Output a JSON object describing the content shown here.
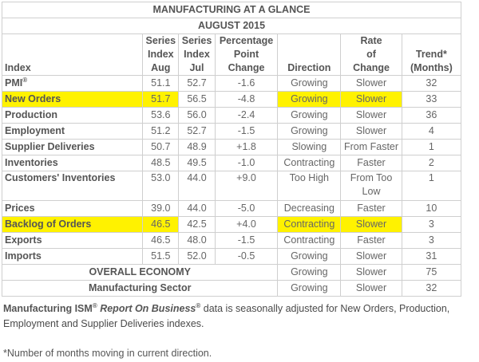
{
  "table": {
    "title": "MANUFACTURING AT A GLANCE",
    "subtitle": "AUGUST 2015",
    "headers": {
      "index": "Index",
      "series_aug": [
        "Series",
        "Index",
        "Aug"
      ],
      "series_jul": [
        "Series",
        "Index",
        "Jul"
      ],
      "pct_change": [
        "Percentage",
        "Point",
        "Change"
      ],
      "direction": "Direction",
      "rate": [
        "Rate",
        "of",
        "Change"
      ],
      "trend": [
        "Trend*",
        "(Months)"
      ]
    },
    "rows": [
      {
        "index": "PMI",
        "sup": "®",
        "aug": "51.1",
        "jul": "52.7",
        "change": "-1.6",
        "direction": "Growing",
        "rate": "Slower",
        "trend": "32",
        "highlight": false
      },
      {
        "index": "New Orders",
        "aug": "51.7",
        "jul": "56.5",
        "change": "-4.8",
        "direction": "Growing",
        "rate": "Slower",
        "trend": "33",
        "highlight": true
      },
      {
        "index": "Production",
        "aug": "53.6",
        "jul": "56.0",
        "change": "-2.4",
        "direction": "Growing",
        "rate": "Slower",
        "trend": "36",
        "highlight": false
      },
      {
        "index": "Employment",
        "aug": "51.2",
        "jul": "52.7",
        "change": "-1.5",
        "direction": "Growing",
        "rate": "Slower",
        "trend": "4",
        "highlight": false
      },
      {
        "index": "Supplier Deliveries",
        "aug": "50.7",
        "jul": "48.9",
        "change": "+1.8",
        "direction": "Slowing",
        "rate": "From Faster",
        "trend": "1",
        "highlight": false
      },
      {
        "index": "Inventories",
        "aug": "48.5",
        "jul": "49.5",
        "change": "-1.0",
        "direction": "Contracting",
        "rate": "Faster",
        "trend": "2",
        "highlight": false
      },
      {
        "index": "Customers' Inventories",
        "aug": "53.0",
        "jul": "44.0",
        "change": "+9.0",
        "direction": "Too High",
        "rate": "From Too Low",
        "trend": "1",
        "highlight": false,
        "tall": true
      },
      {
        "index": "Prices",
        "aug": "39.0",
        "jul": "44.0",
        "change": "-5.0",
        "direction": "Decreasing",
        "rate": "Faster",
        "trend": "10",
        "highlight": false
      },
      {
        "index": "Backlog of Orders",
        "aug": "46.5",
        "jul": "42.5",
        "change": "+4.0",
        "direction": "Contracting",
        "rate": "Slower",
        "trend": "3",
        "highlight": true
      },
      {
        "index": "Exports",
        "aug": "46.5",
        "jul": "48.0",
        "change": "-1.5",
        "direction": "Contracting",
        "rate": "Faster",
        "trend": "3",
        "highlight": false
      },
      {
        "index": "Imports",
        "aug": "51.5",
        "jul": "52.0",
        "change": "-0.5",
        "direction": "Growing",
        "rate": "Slower",
        "trend": "31",
        "highlight": false
      }
    ],
    "summary": [
      {
        "label": "OVERALL ECONOMY",
        "direction": "Growing",
        "rate": "Slower",
        "trend": "75"
      },
      {
        "label": "Manufacturing Sector",
        "direction": "Growing",
        "rate": "Slower",
        "trend": "32"
      }
    ],
    "highlight_color": "#fff200"
  },
  "footer": {
    "lead": "Manufacturing ISM",
    "reg": "®",
    "report": "Report On Business",
    "rest": " data is seasonally adjusted for New Orders, Production, Employment and Supplier Deliveries indexes.",
    "note": "*Number of months moving in current direction."
  }
}
